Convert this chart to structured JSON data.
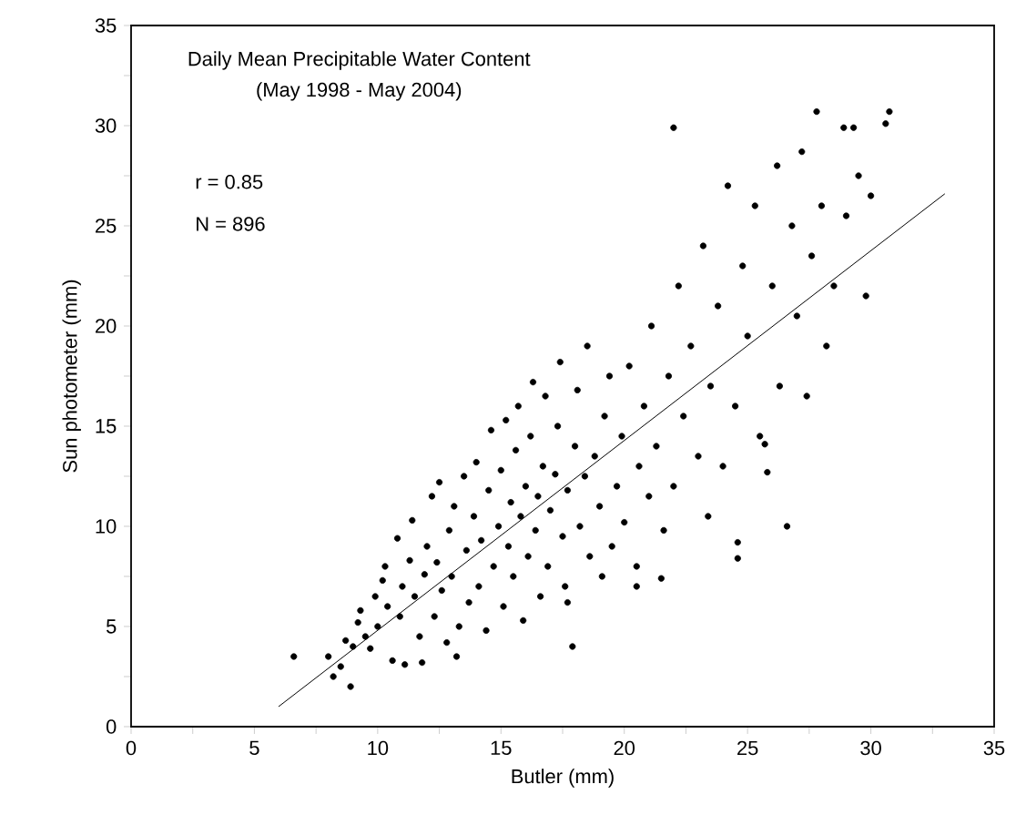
{
  "chart_data": {
    "type": "scatter",
    "title": "Daily Mean Precipitable Water Content",
    "subtitle": "(May 1998 - May 2004)",
    "xlabel": "Butler (mm)",
    "ylabel": "Sun photometer (mm)",
    "annotations": [
      "r = 0.85",
      "N = 896"
    ],
    "xlim": [
      0,
      35
    ],
    "ylim": [
      0,
      35
    ],
    "xticks": [
      0,
      {
        "value": 2.5,
        "label": null
      },
      5,
      {
        "value": 7.5,
        "label": null
      },
      10,
      {
        "value": 12.5,
        "label": null
      },
      15,
      {
        "value": 17.5,
        "label": null
      },
      20,
      {
        "value": 22.5,
        "label": null
      },
      25,
      {
        "value": 27.5,
        "label": null
      },
      30,
      {
        "value": 32.5,
        "label": null
      },
      35
    ],
    "yticks": [
      0,
      {
        "value": 2.5,
        "label": null
      },
      5,
      {
        "value": 7.5,
        "label": null
      },
      10,
      {
        "value": 12.5,
        "label": null
      },
      15,
      {
        "value": 17.5,
        "label": null
      },
      20,
      {
        "value": 22.5,
        "label": null
      },
      25,
      {
        "value": 27.5,
        "label": null
      },
      30,
      {
        "value": 32.5,
        "label": null
      },
      35
    ],
    "series": [
      {
        "color": "#000000",
        "marker": "circle",
        "x": [
          8.0,
          8.2,
          8.5,
          8.7,
          9.0,
          9.2,
          9.3,
          9.5,
          9.7,
          9.9,
          10.0,
          10.2,
          10.3,
          10.4,
          10.6,
          10.8,
          10.9,
          11.0,
          11.1,
          11.3,
          11.4,
          11.5,
          11.7,
          11.8,
          11.9,
          12.0,
          12.2,
          12.3,
          12.4,
          12.5,
          12.6,
          12.8,
          12.9,
          13.0,
          13.1,
          13.2,
          13.3,
          13.5,
          13.6,
          13.7,
          13.9,
          14.0,
          14.1,
          14.2,
          14.4,
          14.5,
          14.6,
          14.7,
          14.9,
          15.0,
          15.1,
          15.2,
          15.3,
          15.4,
          15.5,
          15.6,
          15.7,
          15.8,
          15.9,
          16.0,
          16.1,
          16.2,
          16.3,
          16.4,
          16.5,
          16.6,
          16.7,
          16.8,
          16.9,
          17.0,
          17.2,
          17.3,
          17.4,
          17.5,
          17.6,
          17.7,
          17.9,
          17.7,
          18.0,
          18.1,
          18.2,
          18.4,
          18.5,
          18.6,
          18.8,
          19.0,
          19.1,
          19.2,
          19.4,
          19.5,
          19.7,
          19.9,
          20.0,
          20.2,
          20.5,
          20.5,
          20.6,
          20.8,
          21.0,
          21.1,
          21.3,
          21.5,
          21.6,
          21.8,
          22.0,
          22.0,
          22.2,
          22.4,
          22.7,
          23.0,
          23.2,
          23.4,
          23.5,
          23.8,
          24.0,
          24.2,
          24.5,
          24.6,
          24.6,
          24.8,
          25.0,
          25.3,
          25.5,
          25.7,
          25.8,
          26.0,
          26.2,
          26.3,
          26.6,
          26.8,
          27.0,
          27.2,
          27.4,
          27.6,
          27.8,
          28.0,
          28.2,
          28.5,
          28.9,
          29.0,
          29.3,
          29.5,
          29.8,
          30.0,
          30.6,
          30.75,
          6.6,
          8.9
        ],
        "values": [
          3.5,
          2.5,
          3.0,
          4.3,
          4.0,
          5.2,
          5.8,
          4.5,
          3.9,
          6.5,
          5.0,
          7.3,
          8.0,
          6.0,
          3.3,
          9.4,
          5.5,
          7.0,
          3.1,
          8.3,
          10.3,
          6.5,
          4.5,
          3.2,
          7.6,
          9.0,
          11.5,
          5.5,
          8.2,
          12.2,
          6.8,
          4.2,
          9.8,
          7.5,
          11.0,
          3.5,
          5.0,
          12.5,
          8.8,
          6.2,
          10.5,
          13.2,
          7.0,
          9.3,
          4.8,
          11.8,
          14.8,
          8.0,
          10.0,
          12.8,
          6.0,
          15.3,
          9.0,
          11.2,
          7.5,
          13.8,
          16.0,
          10.5,
          5.3,
          12.0,
          8.5,
          14.5,
          17.2,
          9.8,
          11.5,
          6.5,
          13.0,
          16.5,
          8.0,
          10.8,
          12.6,
          15.0,
          18.2,
          9.5,
          7.0,
          11.8,
          4.0,
          6.2,
          14.0,
          16.8,
          10.0,
          12.5,
          19.0,
          8.5,
          13.5,
          11.0,
          7.5,
          15.5,
          17.5,
          9.0,
          12.0,
          14.5,
          10.2,
          18.0,
          7.0,
          8.0,
          13.0,
          16.0,
          11.5,
          20.0,
          14.0,
          7.4,
          9.8,
          17.5,
          12.0,
          29.9,
          22.0,
          15.5,
          19.0,
          13.5,
          24.0,
          10.5,
          17.0,
          21.0,
          13.0,
          27.0,
          16.0,
          8.4,
          9.2,
          23.0,
          19.5,
          26.0,
          14.5,
          14.1,
          12.7,
          22.0,
          28.0,
          17.0,
          10.0,
          25.0,
          20.5,
          28.7,
          16.5,
          23.5,
          30.7,
          26.0,
          19.0,
          22.0,
          29.9,
          25.5,
          29.9,
          27.5,
          21.5,
          26.5,
          30.1,
          30.7,
          3.5,
          2.0
        ]
      },
      {
        "type": "line",
        "color": "#000000",
        "marker": "none",
        "line_style": "solid",
        "x": [
          5.98,
          33.0
        ],
        "values": [
          1.0,
          26.6
        ]
      }
    ]
  }
}
